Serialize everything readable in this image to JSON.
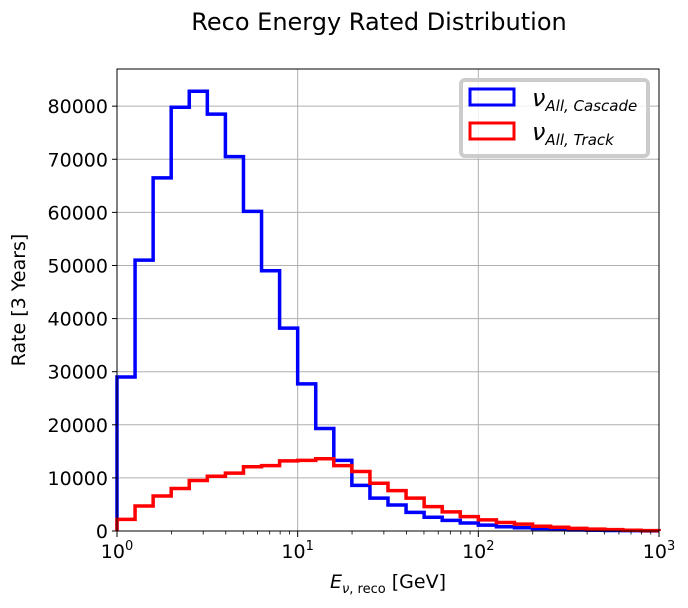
{
  "chart_data": {
    "type": "line",
    "title": "Reco Energy Rated Distribution",
    "xlabel": "E_{ν, reco} [GeV]",
    "ylabel": "Rate [3 Years]",
    "xscale": "log",
    "xlim": [
      1,
      1000
    ],
    "ylim": [
      0,
      87000
    ],
    "grid": true,
    "legend_position": "top-right",
    "xticks": [
      1,
      10,
      100,
      1000
    ],
    "xtick_labels": [
      "10^0",
      "10^1",
      "10^2",
      "10^3"
    ],
    "yticks": [
      0,
      10000,
      20000,
      30000,
      40000,
      50000,
      60000,
      70000,
      80000
    ],
    "ytick_labels": [
      "0",
      "10000",
      "20000",
      "30000",
      "40000",
      "50000",
      "60000",
      "70000",
      "80000"
    ],
    "bin_edges": [
      1,
      1.259,
      1.585,
      1.995,
      2.512,
      3.162,
      3.981,
      5.012,
      6.31,
      7.943,
      10,
      12.59,
      15.85,
      19.95,
      25.12,
      31.62,
      39.81,
      50.12,
      63.1,
      79.43,
      100,
      125.9,
      158.5,
      199.5,
      251.2,
      316.2,
      398.1,
      501.2,
      631,
      794.3,
      1000
    ],
    "series": [
      {
        "name": "ν_{All, Cascade}",
        "color": "#0000ff",
        "values": [
          29000,
          51000,
          66500,
          79800,
          82800,
          78500,
          70500,
          60200,
          49000,
          38200,
          27700,
          19300,
          13300,
          8600,
          6200,
          4900,
          3500,
          2600,
          2000,
          1500,
          1100,
          800,
          600,
          450,
          300,
          200,
          150,
          100,
          60,
          30
        ]
      },
      {
        "name": "ν_{All, Track}",
        "color": "#ff0000",
        "values": [
          2200,
          4700,
          6600,
          8000,
          9500,
          10300,
          10900,
          12100,
          12300,
          13200,
          13300,
          13600,
          12300,
          11200,
          9000,
          7600,
          6200,
          4600,
          3600,
          2700,
          2100,
          1600,
          1300,
          900,
          700,
          500,
          350,
          250,
          150,
          80
        ]
      }
    ]
  }
}
